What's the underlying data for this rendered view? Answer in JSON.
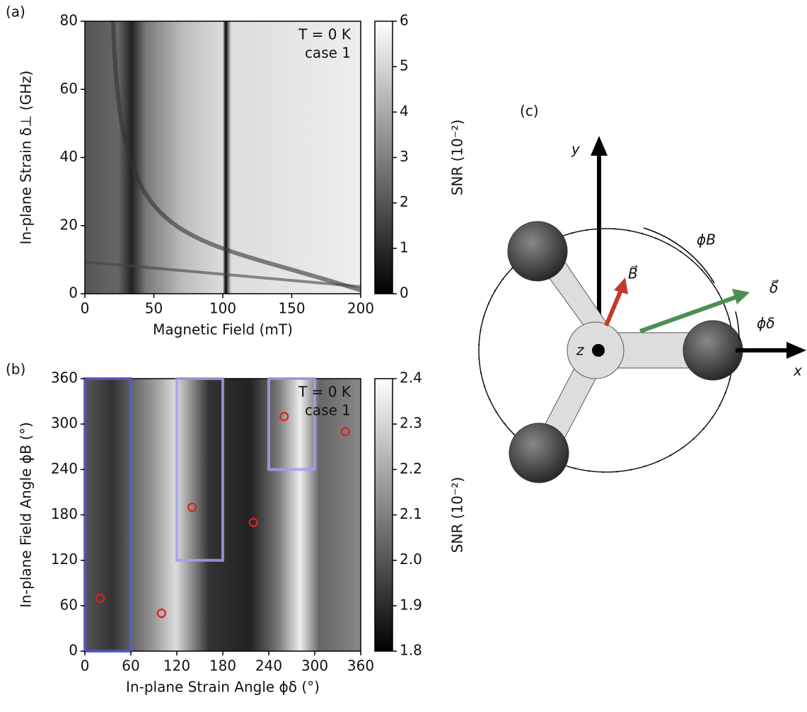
{
  "chart_data": [
    {
      "type": "heatmap",
      "panel_label": "(a)",
      "xlabel": "Magnetic Field (mT)",
      "ylabel": "In-plane Strain δ⊥ (GHz)",
      "xlim": [
        0,
        200
      ],
      "xticks": [
        0,
        50,
        100,
        150,
        200
      ],
      "ylim": [
        0,
        80
      ],
      "yticks": [
        0,
        20,
        40,
        60,
        80
      ],
      "annotations": [
        "T = 0 K",
        "case 1"
      ],
      "colorbar": {
        "label": "SNR (10⁻²)",
        "lim": [
          0,
          6
        ],
        "ticks": [
          0,
          1,
          2,
          3,
          4,
          5,
          6
        ]
      }
    },
    {
      "type": "heatmap",
      "panel_label": "(b)",
      "xlabel": "In-plane Strain Angle ϕδ (°)",
      "ylabel": "In-plane Field Angle ϕB (°)",
      "xlim": [
        0,
        360
      ],
      "xticks": [
        0,
        60,
        120,
        180,
        240,
        300,
        360
      ],
      "ylim": [
        0,
        360
      ],
      "yticks": [
        0,
        60,
        120,
        180,
        240,
        300,
        360
      ],
      "annotations": [
        "T = 0 K",
        "case 1"
      ],
      "colorbar": {
        "label": "SNR (10⁻²)",
        "lim": [
          1.8,
          2.4
        ],
        "ticks": [
          1.8,
          1.9,
          {
            "value": 2,
            "label": "2.0"
          },
          2.1,
          2.2,
          2.3,
          2.4
        ]
      },
      "scatter": {
        "color": "#e02020",
        "x": [
          20,
          100,
          140,
          220,
          260,
          340
        ],
        "y": [
          70,
          50,
          190,
          170,
          310,
          290
        ]
      },
      "regions": [
        {
          "color": "#5a5ad0",
          "x": [
            0,
            60
          ],
          "y": [
            0,
            360
          ]
        },
        {
          "color": "#a0a0f0",
          "x": [
            120,
            180
          ],
          "y": [
            120,
            360
          ]
        },
        {
          "color": "#a0a0f0",
          "x": [
            240,
            300
          ],
          "y": [
            240,
            360
          ]
        }
      ]
    }
  ],
  "diagram": {
    "panel_label": "(c)",
    "labels": {
      "y": "y",
      "x": "x",
      "z": "z",
      "b": "B⃗",
      "delta": "δ⃗",
      "phi_b": "ϕB",
      "phi_delta": "ϕδ"
    }
  }
}
